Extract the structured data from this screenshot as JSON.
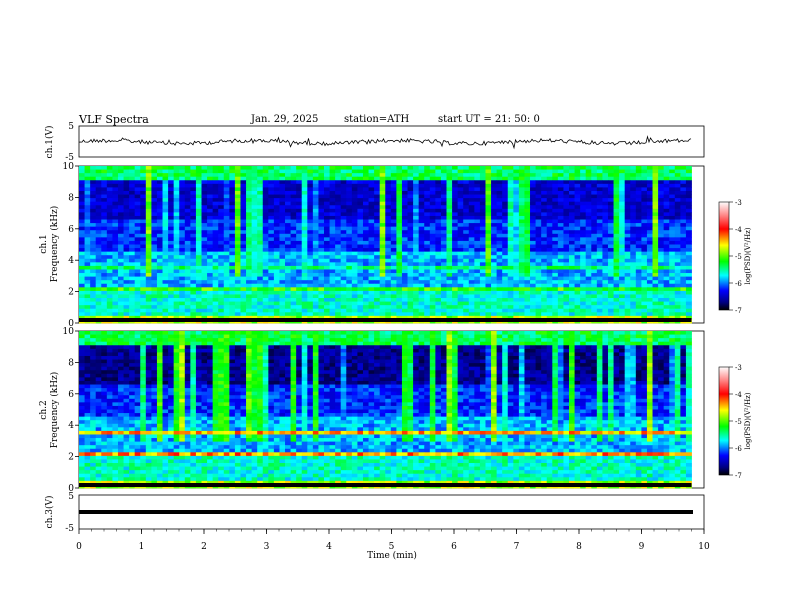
{
  "header": {
    "title": "VLF  Spectra",
    "date": "Jan. 29, 2025",
    "station": "station=ATH",
    "start": "start  UT  =   21: 50: 0"
  },
  "panels": {
    "ch1_wave": {
      "label": "ch.1(V)",
      "yticks": [
        "5",
        "-5"
      ]
    },
    "ch1_spec": {
      "label_line1": "ch.1",
      "label_line2": "Frequency  (kHz)",
      "yticks": [
        "0",
        "2",
        "4",
        "6",
        "8",
        "10"
      ]
    },
    "ch2_spec": {
      "label_line1": "ch.2",
      "label_line2": "Frequency  (kHz)",
      "yticks": [
        "0",
        "2",
        "4",
        "6",
        "8",
        "10"
      ]
    },
    "ch3_wave": {
      "label": "ch.3(V)",
      "yticks": [
        "5",
        "-5"
      ]
    }
  },
  "xaxis": {
    "label": "Time  (min)",
    "ticks": [
      "0",
      "1",
      "2",
      "3",
      "4",
      "5",
      "6",
      "7",
      "8",
      "9",
      "10"
    ]
  },
  "colorbar": {
    "label": "log(PSD)(V²/Hz)",
    "ticks": [
      "-3",
      "-4",
      "-5",
      "-6",
      "-7"
    ]
  },
  "chart_data": {
    "type": "heatmap",
    "title": "VLF  Spectra",
    "xlabel": "Time  (min)",
    "xlim": [
      0,
      10
    ],
    "data_extent_min": 9.8,
    "channels": [
      {
        "name": "ch.1",
        "ylabel": "Frequency  (kHz)",
        "ylim": [
          0,
          10
        ],
        "clim": [
          -7,
          -3
        ]
      },
      {
        "name": "ch.2",
        "ylabel": "Frequency  (kHz)",
        "ylim": [
          0,
          10
        ],
        "clim": [
          -7,
          -3
        ]
      }
    ],
    "waveforms": [
      {
        "name": "ch.1(V)",
        "ylim": [
          -5,
          5
        ],
        "approx_level": 0
      },
      {
        "name": "ch.3(V)",
        "ylim": [
          -5,
          5
        ],
        "approx_level": 0
      }
    ],
    "colormap": [
      "#ffffff",
      "#ff0000",
      "#ffff00",
      "#00ff00",
      "#00ffff",
      "#0000ff",
      "#000000"
    ]
  }
}
